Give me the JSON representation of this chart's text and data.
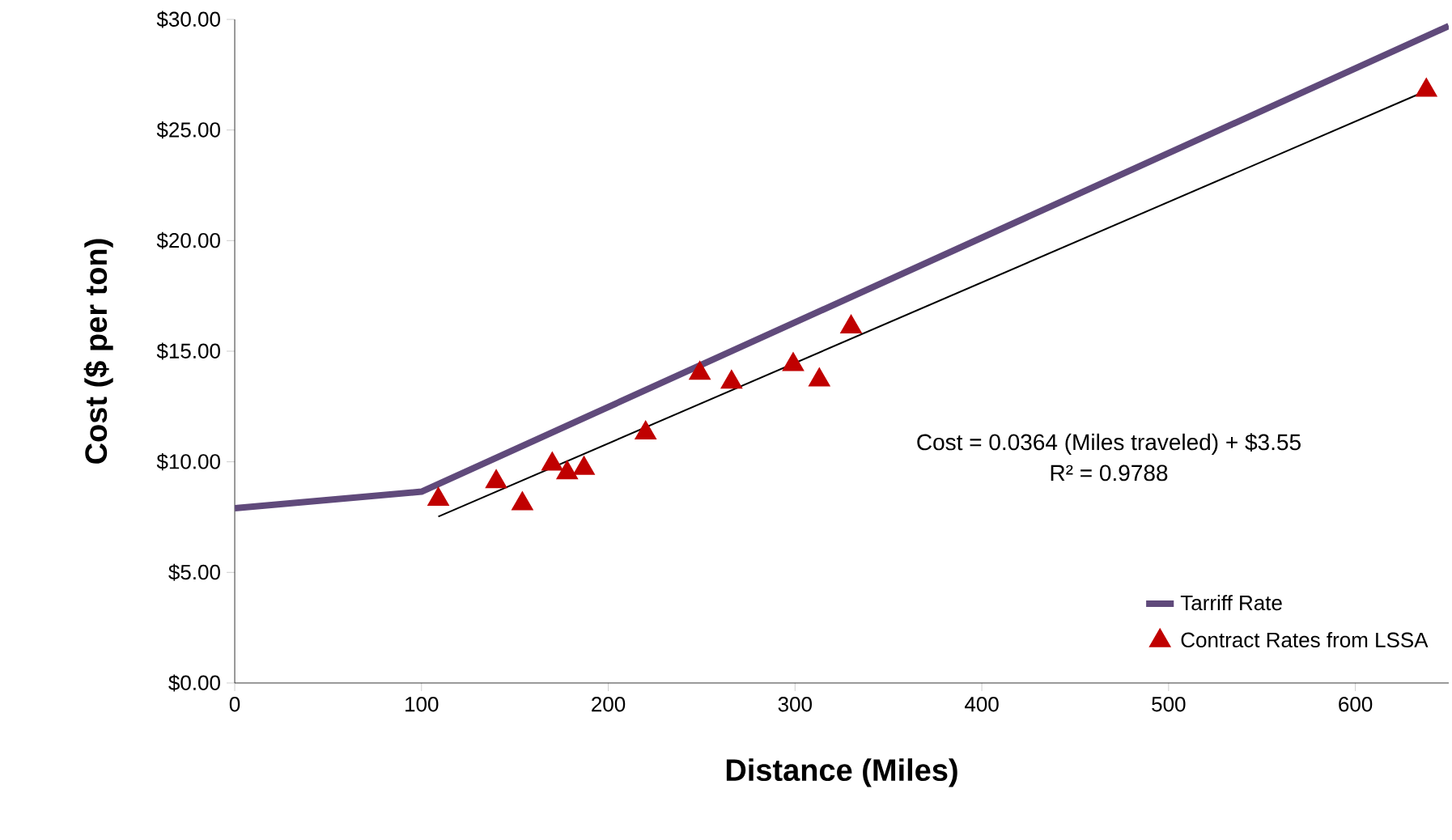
{
  "chart_data": {
    "type": "line",
    "xlabel": "Distance (Miles)",
    "ylabel": "Cost ($ per ton)",
    "xlim": [
      0,
      650
    ],
    "ylim": [
      0,
      30
    ],
    "xticks": [
      0,
      100,
      200,
      300,
      400,
      500,
      600
    ],
    "yticks": [
      {
        "value": 0,
        "label": "$0.00"
      },
      {
        "value": 5,
        "label": "$5.00"
      },
      {
        "value": 10,
        "label": "$10.00"
      },
      {
        "value": 15,
        "label": "$15.00"
      },
      {
        "value": 20,
        "label": "$20.00"
      },
      {
        "value": 25,
        "label": "$25.00"
      },
      {
        "value": 30,
        "label": "$30.00"
      }
    ],
    "series": [
      {
        "name": "Tarriff Rate",
        "color": "#604a7b",
        "x": [
          0,
          100,
          650
        ],
        "values": [
          7.9,
          8.65,
          29.7
        ]
      },
      {
        "name": "Contract Rates from LSSA",
        "type": "scatter",
        "marker": "triangle",
        "color": "#c00000",
        "x": [
          109,
          140,
          154,
          170,
          178,
          187,
          220,
          249,
          266,
          299,
          313,
          330,
          638
        ],
        "values": [
          8.3,
          9.1,
          8.1,
          9.9,
          9.5,
          9.7,
          11.3,
          14.0,
          13.6,
          14.4,
          13.7,
          16.1,
          26.8
        ]
      },
      {
        "color": "#000000",
        "x": [
          109,
          638
        ],
        "values": [
          7.52,
          26.77
        ]
      }
    ],
    "annotations": [
      "Cost  = 0.0364 (Miles traveled) + $3.55",
      "R² = 0.9788"
    ],
    "grid": false,
    "legend": "bottom right"
  }
}
